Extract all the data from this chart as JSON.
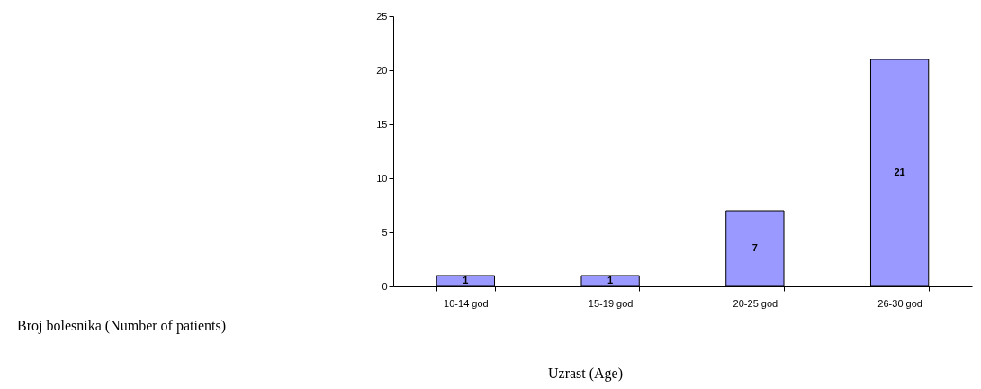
{
  "chart_data": {
    "type": "bar",
    "xlabel": "Uzrast (Age)",
    "annotations": [
      "Broj bolesnika (Number of patients)"
    ],
    "categories": [
      "10-14 god",
      "15-19 god",
      "20-25 god",
      "26-30 god"
    ],
    "values": [
      1,
      1,
      7,
      21
    ],
    "color": "#9999ff",
    "ylim": [
      0,
      25
    ],
    "yticks": [
      0,
      5,
      10,
      15,
      20,
      25
    ],
    "grid": false,
    "data_labels": true
  }
}
